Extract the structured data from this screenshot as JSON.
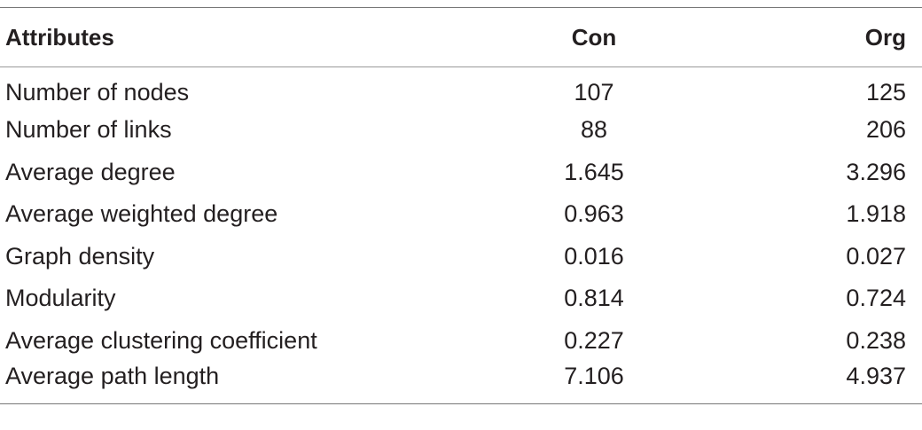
{
  "table": {
    "headers": {
      "attributes": "Attributes",
      "con": "Con",
      "org": "Org"
    },
    "rows": [
      {
        "attribute": "Number of nodes",
        "con": "107",
        "org": "125"
      },
      {
        "attribute": "Number of links",
        "con": "88",
        "org": "206"
      },
      {
        "attribute": "Average degree",
        "con": "1.645",
        "org": "3.296"
      },
      {
        "attribute": "Average weighted degree",
        "con": "0.963",
        "org": "1.918"
      },
      {
        "attribute": "Graph density",
        "con": "0.016",
        "org": "0.027"
      },
      {
        "attribute": "Modularity",
        "con": "0.814",
        "org": "0.724"
      },
      {
        "attribute": "Average clustering coefficient",
        "con": "0.227",
        "org": "0.238"
      },
      {
        "attribute": "Average path length",
        "con": "7.106",
        "org": "4.937"
      }
    ]
  }
}
